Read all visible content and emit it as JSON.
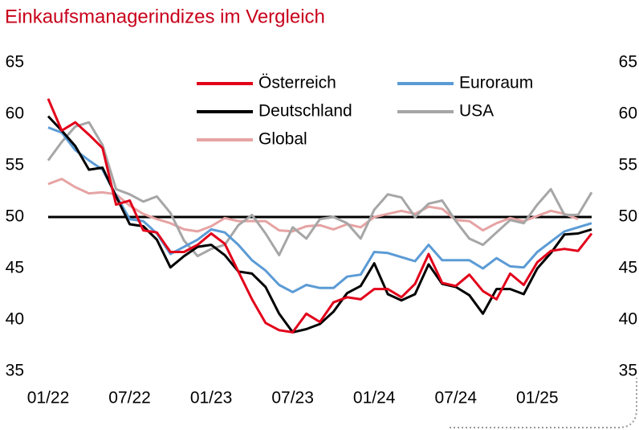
{
  "chart_data": {
    "type": "line",
    "title": "Einkaufsmanagerindizes im Vergleich",
    "categories": [
      "01/22",
      null,
      null,
      null,
      null,
      null,
      "07/22",
      null,
      null,
      null,
      null,
      null,
      "01/23",
      null,
      null,
      null,
      null,
      null,
      "07/23",
      null,
      null,
      null,
      null,
      null,
      "01/24",
      null,
      null,
      null,
      null,
      null,
      "07/24",
      null,
      null,
      null,
      null,
      null,
      "01/25",
      null,
      null,
      null,
      null
    ],
    "series": [
      {
        "name": "Österreich",
        "color": "#e2001a",
        "values": [
          61.5,
          58.4,
          59.2,
          58.0,
          56.7,
          51.2,
          51.6,
          48.7,
          48.5,
          46.6,
          46.6,
          47.3,
          48.4,
          47.4,
          44.7,
          42.0,
          39.7,
          39.0,
          38.8,
          40.6,
          39.8,
          41.7,
          42.2,
          42.0,
          43.0,
          43.0,
          42.2,
          43.5,
          46.4,
          43.6,
          43.3,
          44.4,
          42.8,
          42.0,
          44.5,
          43.4,
          45.6,
          46.7,
          46.9,
          46.7,
          48.4
        ]
      },
      {
        "name": "Euroraum",
        "color": "#5b9bd5",
        "values": [
          58.7,
          58.2,
          56.5,
          55.5,
          54.6,
          52.1,
          49.8,
          49.6,
          48.4,
          46.4,
          47.1,
          47.8,
          48.8,
          48.5,
          47.3,
          45.8,
          44.8,
          43.4,
          42.7,
          43.4,
          43.1,
          43.1,
          44.2,
          44.4,
          46.6,
          46.5,
          46.1,
          45.7,
          47.3,
          45.8,
          45.8,
          45.8,
          45.0,
          46.0,
          45.2,
          45.1,
          46.6,
          47.6,
          48.6,
          49.0,
          49.4
        ]
      },
      {
        "name": "Deutschland",
        "color": "#000000",
        "values": [
          59.8,
          58.4,
          56.9,
          54.6,
          54.8,
          52.0,
          49.3,
          49.1,
          47.8,
          45.1,
          46.2,
          47.1,
          47.3,
          46.3,
          44.7,
          44.5,
          43.2,
          40.6,
          38.8,
          39.1,
          39.6,
          40.8,
          42.6,
          43.3,
          45.5,
          42.5,
          41.9,
          42.5,
          45.4,
          43.5,
          43.2,
          42.4,
          40.6,
          43.0,
          43.0,
          42.5,
          45.0,
          46.5,
          48.3,
          48.4,
          48.8
        ]
      },
      {
        "name": "USA",
        "color": "#a6a6a6",
        "values": [
          55.5,
          57.3,
          58.8,
          59.2,
          57.0,
          52.7,
          52.2,
          51.5,
          52.0,
          50.4,
          47.7,
          46.2,
          46.9,
          47.3,
          49.2,
          50.2,
          48.4,
          46.3,
          49.0,
          47.9,
          49.8,
          50.0,
          49.4,
          47.9,
          50.7,
          52.2,
          51.9,
          50.0,
          51.3,
          51.6,
          49.6,
          47.9,
          47.3,
          48.5,
          49.7,
          49.4,
          51.2,
          52.7,
          50.2,
          50.2,
          52.4
        ]
      },
      {
        "name": "Global",
        "color": "#e6a3a3",
        "values": [
          53.2,
          53.7,
          52.9,
          52.3,
          52.4,
          52.2,
          51.1,
          50.3,
          49.8,
          49.4,
          48.8,
          48.6,
          49.1,
          49.9,
          49.6,
          49.6,
          49.6,
          48.7,
          48.6,
          49.1,
          49.2,
          48.8,
          49.3,
          49.0,
          50.0,
          50.3,
          50.6,
          50.3,
          51.0,
          50.8,
          49.7,
          49.6,
          48.7,
          49.4,
          49.9,
          49.6,
          50.1,
          50.6,
          50.3,
          49.8,
          null
        ]
      }
    ],
    "ylim": [
      35,
      65
    ],
    "yticks": [
      35,
      40,
      45,
      50,
      55,
      60,
      65
    ],
    "reference_line": 50,
    "legend": "top"
  }
}
